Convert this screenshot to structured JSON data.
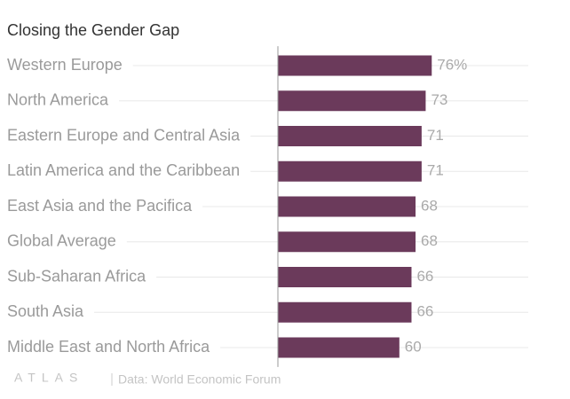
{
  "chart_data": {
    "type": "bar",
    "orientation": "horizontal",
    "title": "Closing the Gender Gap",
    "categories": [
      "Western Europe",
      "North America",
      "Eastern Europe and Central Asia",
      "Latin America and the Caribbean",
      "East Asia and the Pacifica",
      "Global Average",
      "Sub-Saharan Africa",
      "South Asia",
      "Middle East and North Africa"
    ],
    "values": [
      76,
      73,
      71,
      71,
      68,
      68,
      66,
      66,
      60
    ],
    "value_labels": [
      "76%",
      "73",
      "71",
      "71",
      "68",
      "68",
      "66",
      "66",
      "60"
    ],
    "color": "#6b3a5b",
    "xlim": [
      0,
      100
    ],
    "logo": "ATLAS",
    "source": "Data: World Economic Forum"
  }
}
